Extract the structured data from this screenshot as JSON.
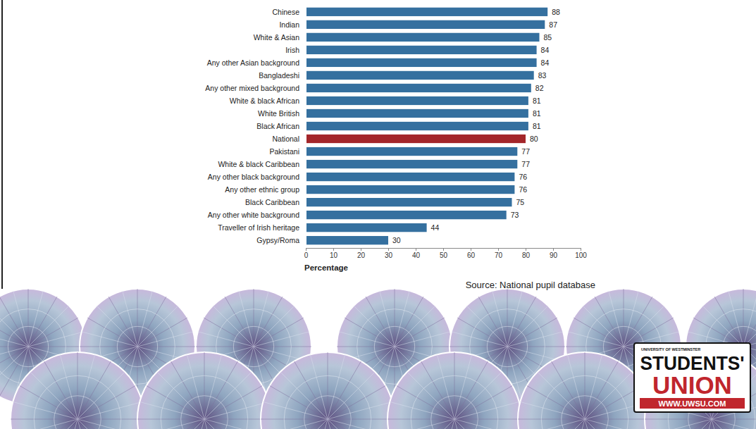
{
  "chart_data": {
    "type": "bar",
    "orientation": "horizontal",
    "categories": [
      "Chinese",
      "Indian",
      "White & Asian",
      "Irish",
      "Any other Asian background",
      "Bangladeshi",
      "Any other mixed background",
      "White & black African",
      "White British",
      "Black African",
      "National",
      "Pakistani",
      "White & black Caribbean",
      "Any other black background",
      "Any other ethnic group",
      "Black Caribbean",
      "Any other white background",
      "Traveller of Irish heritage",
      "Gypsy/Roma"
    ],
    "values": [
      88,
      87,
      85,
      84,
      84,
      83,
      82,
      81,
      81,
      81,
      80,
      77,
      77,
      76,
      76,
      75,
      73,
      44,
      30
    ],
    "colors": [
      "#35709f",
      "#35709f",
      "#35709f",
      "#35709f",
      "#35709f",
      "#35709f",
      "#35709f",
      "#35709f",
      "#35709f",
      "#35709f",
      "#a3262a",
      "#35709f",
      "#35709f",
      "#35709f",
      "#35709f",
      "#35709f",
      "#35709f",
      "#35709f",
      "#35709f"
    ],
    "xlim": [
      0,
      100
    ],
    "xticks": [
      0,
      10,
      20,
      30,
      40,
      50,
      60,
      70,
      80,
      90,
      100
    ],
    "x_label": "Percentage",
    "data_labels": true,
    "grid": false,
    "annotations": [
      "Source: National pupil database"
    ]
  },
  "logo": {
    "lines": [
      "UNIVERSITY OF WESTMINSTER",
      "STUDENTS'",
      "UNION",
      "WWW.UWSU.COM"
    ]
  }
}
